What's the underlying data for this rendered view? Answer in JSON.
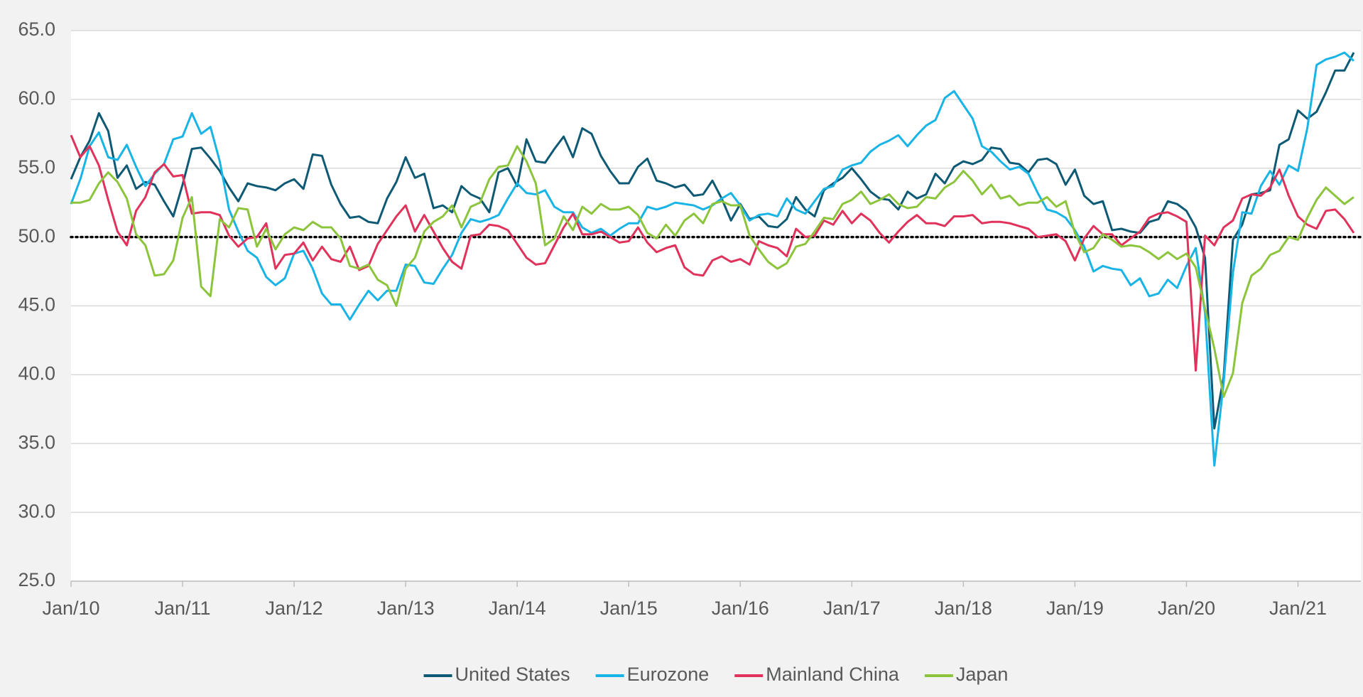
{
  "chart_data": {
    "type": "line",
    "categories": [
      "Jan/10",
      null,
      null,
      null,
      null,
      null,
      null,
      null,
      null,
      null,
      null,
      null,
      "Jan/11",
      null,
      null,
      null,
      null,
      null,
      null,
      null,
      null,
      null,
      null,
      null,
      "Jan/12",
      null,
      null,
      null,
      null,
      null,
      null,
      null,
      null,
      null,
      null,
      null,
      "Jan/13",
      null,
      null,
      null,
      null,
      null,
      null,
      null,
      null,
      null,
      null,
      null,
      "Jan/14",
      null,
      null,
      null,
      null,
      null,
      null,
      null,
      null,
      null,
      null,
      null,
      "Jan/15",
      null,
      null,
      null,
      null,
      null,
      null,
      null,
      null,
      null,
      null,
      null,
      "Jan/16",
      null,
      null,
      null,
      null,
      null,
      null,
      null,
      null,
      null,
      null,
      null,
      "Jan/17",
      null,
      null,
      null,
      null,
      null,
      null,
      null,
      null,
      null,
      null,
      null,
      "Jan/18",
      null,
      null,
      null,
      null,
      null,
      null,
      null,
      null,
      null,
      null,
      null,
      "Jan/19",
      null,
      null,
      null,
      null,
      null,
      null,
      null,
      null,
      null,
      null,
      null,
      "Jan/20",
      null,
      null,
      null,
      null,
      null,
      null,
      null,
      null,
      null,
      null,
      null,
      "Jan/21",
      null,
      null,
      null,
      null,
      null,
      null
    ],
    "series": [
      {
        "name": "United States",
        "color": "#0e5a74",
        "values": [
          54.2,
          55.8,
          57.0,
          59.0,
          57.7,
          54.3,
          55.2,
          53.5,
          54.0,
          53.8,
          52.6,
          51.5,
          53.8,
          56.4,
          56.5,
          55.7,
          54.8,
          53.6,
          52.6,
          53.9,
          53.7,
          53.6,
          53.4,
          53.9,
          54.2,
          53.5,
          56.0,
          55.9,
          53.8,
          52.4,
          51.4,
          51.5,
          51.1,
          51.0,
          52.8,
          54.0,
          55.8,
          54.3,
          54.6,
          52.1,
          52.3,
          51.8,
          53.7,
          53.1,
          52.8,
          51.8,
          54.7,
          55.0,
          53.7,
          57.1,
          55.5,
          55.4,
          56.4,
          57.3,
          55.8,
          57.9,
          57.5,
          55.9,
          54.8,
          53.9,
          53.9,
          55.1,
          55.7,
          54.1,
          53.9,
          53.6,
          53.8,
          53.0,
          53.1,
          54.1,
          52.8,
          51.2,
          52.4,
          51.3,
          51.5,
          50.8,
          50.7,
          51.3,
          52.9,
          52.0,
          51.5,
          53.4,
          53.9,
          54.3,
          55.0,
          54.2,
          53.3,
          52.8,
          52.7,
          52.0,
          53.3,
          52.8,
          53.1,
          54.6,
          53.9,
          55.1,
          55.5,
          55.3,
          55.6,
          56.5,
          56.4,
          55.4,
          55.3,
          54.7,
          55.6,
          55.7,
          55.3,
          53.8,
          54.9,
          53.0,
          52.4,
          52.6,
          50.5,
          50.6,
          50.4,
          50.3,
          51.1,
          51.3,
          52.6,
          52.4,
          51.9,
          50.7,
          48.5,
          36.1,
          39.8,
          49.8,
          50.9,
          53.1,
          53.2,
          53.4,
          56.7,
          57.1,
          59.2,
          58.6,
          59.1,
          60.5,
          62.1,
          62.1,
          63.4
        ]
      },
      {
        "name": "Eurozone",
        "color": "#19b4e6",
        "values": [
          52.4,
          54.2,
          56.6,
          57.6,
          55.8,
          55.6,
          56.7,
          55.1,
          53.7,
          54.6,
          55.3,
          57.1,
          57.3,
          59.0,
          57.5,
          58.0,
          55.5,
          52.0,
          50.4,
          49.0,
          48.5,
          47.1,
          46.5,
          47.0,
          48.8,
          49.0,
          47.7,
          45.9,
          45.1,
          45.1,
          44.0,
          45.1,
          46.1,
          45.4,
          46.1,
          46.1,
          48.0,
          47.9,
          46.7,
          46.6,
          47.7,
          48.7,
          50.3,
          51.3,
          51.1,
          51.3,
          51.6,
          52.8,
          53.9,
          53.2,
          53.1,
          53.4,
          52.2,
          51.8,
          51.8,
          50.7,
          50.3,
          50.6,
          50.1,
          50.6,
          51.0,
          51.0,
          52.2,
          52.0,
          52.2,
          52.5,
          52.4,
          52.3,
          52.0,
          52.3,
          52.8,
          53.2,
          52.3,
          51.2,
          51.6,
          51.7,
          51.5,
          52.8,
          52.0,
          51.7,
          52.6,
          53.5,
          53.7,
          54.9,
          55.2,
          55.4,
          56.2,
          56.7,
          57.0,
          57.4,
          56.6,
          57.4,
          58.1,
          58.5,
          60.1,
          60.6,
          59.6,
          58.6,
          56.6,
          56.2,
          55.5,
          54.9,
          55.1,
          54.6,
          53.2,
          52.0,
          51.8,
          51.4,
          50.5,
          49.3,
          47.5,
          47.9,
          47.7,
          47.6,
          46.5,
          47.0,
          45.7,
          45.9,
          46.9,
          46.3,
          47.9,
          49.2,
          44.5,
          33.4,
          39.4,
          47.4,
          51.8,
          51.7,
          53.7,
          54.8,
          53.8,
          55.2,
          54.8,
          57.9,
          62.5,
          62.9,
          63.1,
          63.4,
          62.8
        ]
      },
      {
        "name": "Mainland China",
        "color": "#e0325a",
        "values": [
          57.4,
          55.8,
          56.6,
          55.2,
          52.7,
          50.4,
          49.4,
          51.9,
          52.9,
          54.7,
          55.3,
          54.4,
          54.5,
          51.7,
          51.8,
          51.8,
          51.6,
          50.1,
          49.3,
          49.9,
          50.0,
          51.0,
          47.7,
          48.7,
          48.8,
          49.6,
          48.3,
          49.3,
          48.4,
          48.2,
          49.3,
          47.6,
          47.9,
          49.5,
          50.5,
          51.5,
          52.3,
          50.4,
          51.6,
          50.4,
          49.2,
          48.2,
          47.7,
          50.1,
          50.2,
          50.9,
          50.8,
          50.5,
          49.5,
          48.5,
          48.0,
          48.1,
          49.4,
          50.7,
          51.7,
          50.2,
          50.2,
          50.4,
          50.0,
          49.6,
          49.7,
          50.7,
          49.6,
          48.9,
          49.2,
          49.4,
          47.8,
          47.3,
          47.2,
          48.3,
          48.6,
          48.2,
          48.4,
          48.0,
          49.7,
          49.4,
          49.2,
          48.6,
          50.6,
          50.0,
          50.1,
          51.2,
          50.9,
          51.9,
          51.0,
          51.7,
          51.2,
          50.3,
          49.6,
          50.4,
          51.1,
          51.6,
          51.0,
          51.0,
          50.8,
          51.5,
          51.5,
          51.6,
          51.0,
          51.1,
          51.1,
          51.0,
          50.8,
          50.6,
          50.0,
          50.1,
          50.2,
          49.7,
          48.3,
          49.9,
          50.8,
          50.2,
          50.2,
          49.4,
          49.9,
          50.4,
          51.4,
          51.7,
          51.8,
          51.5,
          51.1,
          40.3,
          50.1,
          49.4,
          50.7,
          51.2,
          52.8,
          53.1,
          53.0,
          53.6,
          54.9,
          53.0,
          51.5,
          50.9,
          50.6,
          51.9,
          52.0,
          51.3,
          50.3
        ]
      },
      {
        "name": "Japan",
        "color": "#8cc43c",
        "values": [
          52.5,
          52.5,
          52.7,
          53.9,
          54.7,
          54.0,
          52.8,
          50.2,
          49.4,
          47.2,
          47.3,
          48.3,
          51.4,
          52.9,
          46.4,
          45.7,
          51.3,
          50.7,
          52.1,
          52.0,
          49.3,
          50.6,
          49.1,
          50.2,
          50.7,
          50.5,
          51.1,
          50.7,
          50.7,
          49.9,
          47.9,
          47.7,
          48.0,
          46.9,
          46.5,
          45.0,
          47.7,
          48.5,
          50.4,
          51.1,
          51.5,
          52.3,
          50.7,
          52.2,
          52.5,
          54.2,
          55.1,
          55.2,
          56.6,
          55.5,
          53.9,
          49.4,
          49.9,
          51.5,
          50.5,
          52.2,
          51.7,
          52.4,
          52.0,
          52.0,
          52.2,
          51.6,
          50.3,
          49.9,
          50.9,
          50.1,
          51.2,
          51.7,
          51.0,
          52.4,
          52.6,
          52.3,
          52.3,
          50.1,
          49.1,
          48.2,
          47.7,
          48.1,
          49.3,
          49.5,
          50.4,
          51.4,
          51.3,
          52.4,
          52.7,
          53.3,
          52.4,
          52.7,
          53.1,
          52.4,
          52.1,
          52.2,
          52.9,
          52.8,
          53.6,
          54.0,
          54.8,
          54.1,
          53.1,
          53.8,
          52.8,
          53.0,
          52.3,
          52.5,
          52.5,
          52.9,
          52.2,
          52.6,
          50.3,
          48.9,
          49.2,
          50.2,
          49.8,
          49.3,
          49.4,
          49.3,
          48.9,
          48.4,
          48.9,
          48.4,
          48.8,
          47.8,
          44.8,
          41.9,
          38.4,
          40.1,
          45.2,
          47.2,
          47.7,
          48.7,
          49.0,
          50.0,
          49.8,
          51.4,
          52.7,
          53.6,
          53.0,
          52.4,
          52.9
        ]
      }
    ],
    "ylim": [
      25,
      65
    ],
    "yticks": [
      {
        "value": 25,
        "label": "25.0"
      },
      {
        "value": 30,
        "label": "30.0"
      },
      {
        "value": 35,
        "label": "35.0"
      },
      {
        "value": 40,
        "label": "40.0"
      },
      {
        "value": 45,
        "label": "45.0"
      },
      {
        "value": 50,
        "label": "50.0"
      },
      {
        "value": 55,
        "label": "55.0"
      },
      {
        "value": 60,
        "label": "60.0"
      },
      {
        "value": 65,
        "label": "65.0"
      }
    ],
    "grid": true,
    "reference_line": 50,
    "legend": "bottom"
  }
}
